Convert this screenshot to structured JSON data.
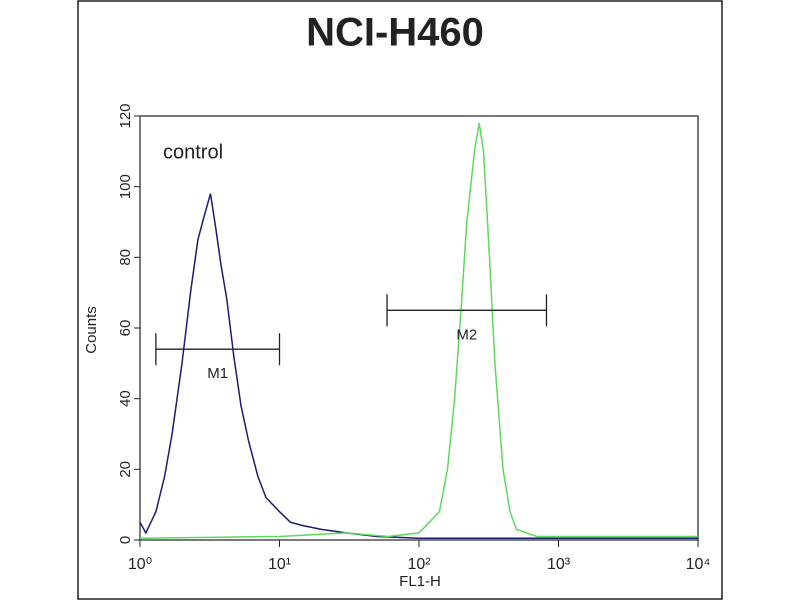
{
  "chart_data": {
    "type": "line",
    "title": "NCI-H460",
    "x_label": "FL1-H",
    "y_label": "Counts",
    "annotation": "control",
    "log_x": true,
    "xlim": [
      1,
      10000
    ],
    "ylim": [
      0,
      120
    ],
    "xticks": [
      {
        "value": 1,
        "label": "10⁰"
      },
      {
        "value": 10,
        "label": "10¹"
      },
      {
        "value": 100,
        "label": "10²"
      },
      {
        "value": 1000,
        "label": "10³"
      },
      {
        "value": 10000,
        "label": "10⁴"
      }
    ],
    "yticks": [
      0,
      20,
      40,
      60,
      80,
      100,
      120
    ],
    "series": [
      {
        "color": "#1c1c6e",
        "x": [
          1.0,
          1.1,
          1.3,
          1.5,
          1.7,
          2.0,
          2.3,
          2.6,
          2.9,
          3.2,
          3.5,
          3.8,
          4.2,
          4.7,
          5.3,
          6,
          7,
          8,
          10,
          12,
          15,
          20,
          30,
          50,
          100,
          1000,
          10000
        ],
        "values": [
          5,
          2,
          8,
          18,
          30,
          50,
          70,
          85,
          92,
          98,
          88,
          78,
          68,
          52,
          38,
          28,
          18,
          12,
          8,
          5,
          4,
          3,
          2,
          1,
          0.5,
          0.5,
          0.5
        ]
      },
      {
        "color": "#5ed85e",
        "x": [
          1,
          10,
          30,
          60,
          100,
          140,
          160,
          180,
          200,
          220,
          250,
          270,
          290,
          320,
          350,
          400,
          450,
          500,
          700,
          1000,
          10000
        ],
        "values": [
          0.5,
          1,
          2,
          1,
          2,
          8,
          20,
          40,
          65,
          90,
          110,
          118,
          110,
          80,
          50,
          20,
          8,
          3,
          1,
          1,
          1
        ]
      }
    ],
    "gates": [
      {
        "label": "M1",
        "x": [
          1.3,
          10
        ],
        "y": 54
      },
      {
        "label": "M2",
        "x": [
          59,
          820
        ],
        "y": 65
      }
    ]
  }
}
